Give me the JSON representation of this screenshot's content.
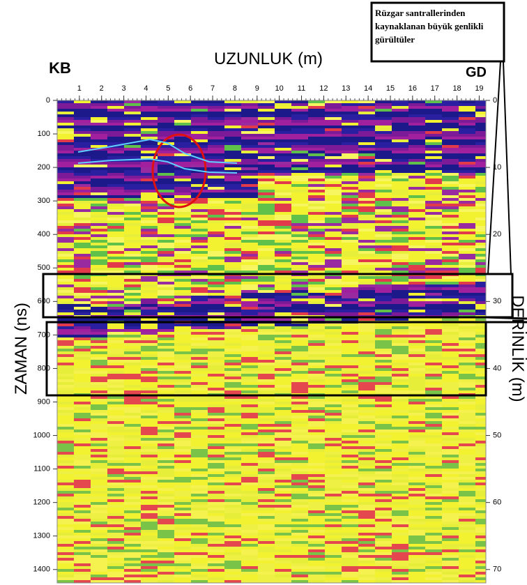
{
  "chart_data": {
    "type": "radargram",
    "title": "UZUNLUK (m)",
    "y_label": "ZAMAN (ns)",
    "y2_label": "DERİNLİK (m)",
    "left_corner": "KB",
    "right_corner": "GD",
    "annotation": "Rüzgar santrallerinden kaynaklanan büyük genlikli gürültüler",
    "xlim": [
      0,
      19.3
    ],
    "xticks": [
      1,
      2,
      3,
      4,
      5,
      6,
      7,
      8,
      9,
      10,
      11,
      12,
      13,
      14,
      15,
      16,
      17,
      18,
      19
    ],
    "ylim": [
      0,
      1440
    ],
    "yticks": [
      0,
      100,
      200,
      300,
      400,
      500,
      600,
      700,
      800,
      900,
      1000,
      1100,
      1200,
      1300,
      1400
    ],
    "y2lim": [
      0,
      72
    ],
    "y2ticks": [
      0,
      10,
      20,
      30,
      40,
      50,
      60,
      70
    ]
  }
}
